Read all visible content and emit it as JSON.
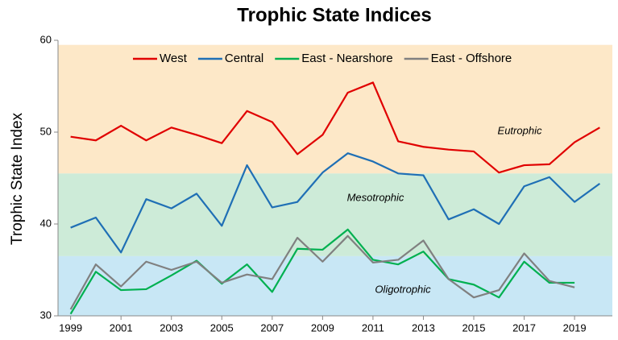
{
  "chart_data": {
    "type": "line",
    "title": "Trophic State Indices",
    "ylabel": "Trophic State Index",
    "x": [
      1999,
      2000,
      2001,
      2002,
      2003,
      2004,
      2005,
      2006,
      2007,
      2008,
      2009,
      2010,
      2011,
      2012,
      2013,
      2014,
      2015,
      2016,
      2017,
      2018,
      2019,
      2020
    ],
    "series": [
      {
        "name": "West",
        "color": "#e00000",
        "values": [
          49.5,
          49.1,
          50.7,
          49.1,
          50.5,
          49.7,
          48.8,
          52.3,
          51.1,
          47.6,
          49.7,
          54.3,
          55.4,
          49.0,
          48.4,
          48.1,
          47.9,
          45.6,
          46.4,
          46.5,
          48.9,
          50.5
        ]
      },
      {
        "name": "Central",
        "color": "#1f6fb5",
        "values": [
          39.6,
          40.7,
          36.9,
          42.7,
          41.7,
          43.3,
          39.8,
          46.4,
          41.8,
          42.4,
          45.6,
          47.7,
          46.8,
          45.5,
          45.3,
          40.5,
          41.6,
          40.0,
          44.1,
          45.1,
          42.4,
          44.4
        ]
      },
      {
        "name": "East - Nearshore",
        "color": "#00b050",
        "values": [
          30.2,
          34.8,
          32.8,
          32.9,
          34.4,
          36.0,
          33.5,
          35.6,
          32.6,
          37.3,
          37.2,
          39.4,
          36.1,
          35.6,
          37.0,
          34.0,
          33.4,
          32.0,
          35.9,
          33.6,
          33.6,
          null
        ]
      },
      {
        "name": "East - Offshore",
        "color": "#808080",
        "values": [
          30.7,
          35.6,
          33.2,
          35.9,
          35.0,
          35.9,
          33.6,
          34.5,
          34.0,
          38.5,
          35.9,
          38.7,
          35.8,
          36.1,
          38.2,
          34.0,
          32.0,
          32.8,
          36.8,
          33.8,
          33.1,
          null
        ]
      }
    ],
    "bands": [
      {
        "label": "Eutrophic",
        "from": 45.5,
        "to": 59.5,
        "color": "#fde8c8"
      },
      {
        "label": "Mesotrophic",
        "from": 36.5,
        "to": 45.5,
        "color": "#cdebd8"
      },
      {
        "label": "Oligotrophic",
        "from": 30,
        "to": 36.5,
        "color": "#c8e7f5"
      }
    ],
    "xlim": [
      1998.5,
      2020.5
    ],
    "xticks": [
      1999,
      2001,
      2003,
      2005,
      2007,
      2009,
      2011,
      2013,
      2015,
      2017,
      2019
    ],
    "ylim": [
      30,
      60
    ],
    "yticks": [
      30,
      40,
      50,
      60
    ],
    "legend": "top"
  }
}
